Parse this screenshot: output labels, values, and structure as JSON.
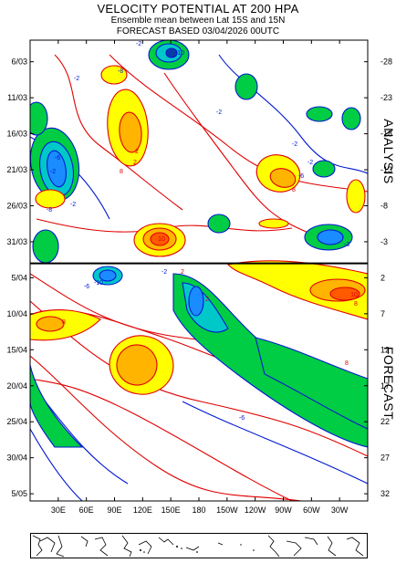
{
  "header": {
    "title": "VELOCITY POTENTIAL AT 200 HPA",
    "subtitle": "Ensemble mean between  Lat 15S and 15N",
    "forecast_line": "FORECAST  BASED 03/04/2026 00UTC"
  },
  "chart_data": {
    "type": "heatmap",
    "title": "VELOCITY POTENTIAL AT 200 HPA",
    "x_tick_labels": [
      "30E",
      "60E",
      "90E",
      "120E",
      "150E",
      "180",
      "150W",
      "120W",
      "90W",
      "60W",
      "30W"
    ],
    "x_tick_lon": [
      30,
      60,
      90,
      120,
      150,
      180,
      210,
      240,
      270,
      300,
      330
    ],
    "x_range": [
      0,
      360
    ],
    "y_left_labels": [
      "6/03",
      "11/03",
      "16/03",
      "21/03",
      "26/03",
      "31/03",
      "5/04",
      "10/04",
      "15/04",
      "20/04",
      "25/04",
      "30/04",
      "5/05"
    ],
    "y_left_dates_day": [
      3,
      8,
      13,
      18,
      23,
      28,
      33,
      38,
      43,
      48,
      53,
      58,
      63
    ],
    "y_right_labels": [
      "-28",
      "-23",
      "-18",
      "-13",
      "-8",
      "-3",
      "2",
      "7",
      "12",
      "17",
      "22",
      "27",
      "32"
    ],
    "y_right_values": [
      -28,
      -23,
      -18,
      -13,
      -8,
      -3,
      2,
      7,
      12,
      17,
      22,
      27,
      32
    ],
    "time_range_day": [
      0,
      64
    ],
    "analysis_forecast_boundary_day": 31,
    "analysis_label": "ANALYSIS",
    "forecast_label": "FORECAST",
    "contour_interval": 2,
    "contour_labels": [
      "-10",
      "-2",
      "2",
      "-2",
      "2",
      "-2",
      "-8",
      "-2",
      "-6",
      "-8",
      "2",
      "8",
      "10",
      "-2",
      "8",
      "-2",
      "-6",
      "-2",
      "-3",
      "2",
      "-10",
      "-6",
      "-2",
      "10",
      "8",
      "8",
      "8",
      "-6"
    ],
    "colors": {
      "negative_fills": [
        "#00cc44",
        "#00c8c8",
        "#1a8cff",
        "#0a3ca8"
      ],
      "positive_fills": [
        "#ffff00",
        "#ffb400",
        "#ff5a00",
        "#ff0000"
      ],
      "negative_lines": "#0018d0",
      "positive_lines": "#e00000"
    }
  },
  "map_strip": {
    "description_icon": "world-coastline-strip"
  }
}
